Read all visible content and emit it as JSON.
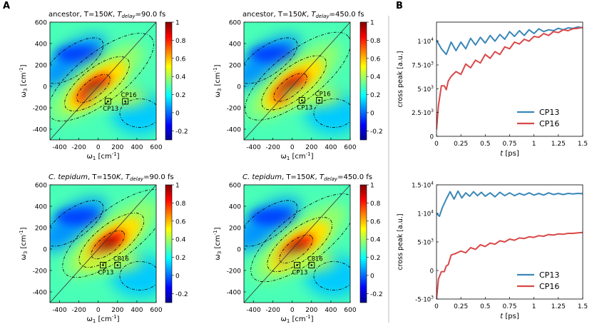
{
  "figure": {
    "label_a": "A",
    "label_b": "B",
    "cp13_label": "CP13",
    "cp16_label": "CP16"
  },
  "chart_data": [
    {
      "type": "heatmap",
      "title_species": "ancestor",
      "title_rest": ", T=150",
      "title_k": "K",
      "title_sep": ", ",
      "title_tsym": "T",
      "title_tsub": "delay",
      "title_val": "=90.0 fs",
      "xlabel_sym": "ω",
      "xlabel_sub": "1",
      "xlabel_unit": " [cm",
      "xlabel_exp": "-1",
      "xlabel_close": "]",
      "ylabel_sym": "ω",
      "ylabel_sub": "3",
      "ylabel_unit": " [cm",
      "ylabel_exp": "-1",
      "ylabel_close": "]",
      "xlim": [
        -500,
        600
      ],
      "ylim": [
        -500,
        600
      ],
      "xticks": [
        "-400",
        "-200",
        "0",
        "200",
        "400",
        "600"
      ],
      "yticks": [
        "600",
        "400",
        "200",
        "0",
        "-200",
        "-400"
      ],
      "colorbar_ticks": [
        "1",
        "0.8",
        "0.6",
        "0.4",
        "0.2",
        "0",
        "-0.2"
      ],
      "colorbar_range": [
        -0.3,
        1
      ],
      "peak": [
        -50,
        -20
      ],
      "cp13": [
        100,
        -140
      ],
      "cp16": [
        280,
        -140
      ]
    },
    {
      "type": "heatmap",
      "title_species": "ancestor",
      "title_rest": ", T=150",
      "title_k": "K",
      "title_sep": ", ",
      "title_tsym": "T",
      "title_tsub": "delay",
      "title_val": "=450.0 fs",
      "xlabel_sym": "ω",
      "xlabel_sub": "1",
      "xlabel_unit": " [cm",
      "xlabel_exp": "-1",
      "xlabel_close": "]",
      "ylabel_sym": "ω",
      "ylabel_sub": "3",
      "ylabel_unit": " [cm",
      "ylabel_exp": "-1",
      "ylabel_close": "]",
      "xlim": [
        -500,
        600
      ],
      "ylim": [
        -500,
        600
      ],
      "xticks": [
        "-400",
        "-200",
        "0",
        "200",
        "400",
        "600"
      ],
      "yticks": [
        "600",
        "400",
        "200",
        "0",
        "-200",
        "-400"
      ],
      "colorbar_ticks": [
        "1",
        "0.8",
        "0.6",
        "0.4",
        "0.2",
        "0",
        "-0.2"
      ],
      "colorbar_range": [
        -0.3,
        1
      ],
      "peak": [
        -20,
        -10
      ],
      "cp13": [
        100,
        -130
      ],
      "cp16": [
        280,
        -130
      ]
    },
    {
      "type": "heatmap",
      "title_species": "C. tepidum",
      "title_rest": ", T=150",
      "title_k": "K",
      "title_sep": ", ",
      "title_tsym": "T",
      "title_tsub": "delay",
      "title_val": "=90.0 fs",
      "xlabel_sym": "ω",
      "xlabel_sub": "1",
      "xlabel_unit": " [cm",
      "xlabel_exp": "-1",
      "xlabel_close": "]",
      "ylabel_sym": "ω",
      "ylabel_sub": "3",
      "ylabel_unit": " [cm",
      "ylabel_exp": "-1",
      "ylabel_close": "]",
      "xlim": [
        -500,
        600
      ],
      "ylim": [
        -500,
        600
      ],
      "xticks": [
        "-400",
        "-200",
        "0",
        "200",
        "400",
        "600"
      ],
      "yticks": [
        "600",
        "400",
        "200",
        "0",
        "-200",
        "-400"
      ],
      "colorbar_ticks": [
        "1",
        "0.8",
        "0.6",
        "0.4",
        "0.2",
        "0",
        "-0.2"
      ],
      "colorbar_range": [
        -0.3,
        1
      ],
      "peak": [
        100,
        40
      ],
      "cp13": [
        50,
        -150
      ],
      "cp16": [
        200,
        -150
      ]
    },
    {
      "type": "heatmap",
      "title_species": "C. tepidum",
      "title_rest": ", T=150",
      "title_k": "K",
      "title_sep": ", ",
      "title_tsym": "T",
      "title_tsub": "delay",
      "title_val": "=450.0 fs",
      "xlabel_sym": "ω",
      "xlabel_sub": "1",
      "xlabel_unit": " [cm",
      "xlabel_exp": "-1",
      "xlabel_close": "]",
      "ylabel_sym": "ω",
      "ylabel_sub": "3",
      "ylabel_unit": " [cm",
      "ylabel_exp": "-1",
      "ylabel_close": "]",
      "xlim": [
        -500,
        600
      ],
      "ylim": [
        -500,
        600
      ],
      "xticks": [
        "-400",
        "-200",
        "0",
        "200",
        "400",
        "600"
      ],
      "yticks": [
        "600",
        "400",
        "200",
        "0",
        "-200",
        "-400"
      ],
      "colorbar_ticks": [
        "1",
        "0.8",
        "0.6",
        "0.4",
        "0.2",
        "0",
        "-0.2"
      ],
      "colorbar_range": [
        -0.3,
        1
      ],
      "peak": [
        40,
        0
      ],
      "cp13": [
        50,
        -150
      ],
      "cp16": [
        200,
        -150
      ]
    },
    {
      "type": "line",
      "xlabel_sym": "t",
      "xlabel_unit": " [ps]",
      "ylabel": "cross peak [a.u.]",
      "xlim": [
        0,
        1.5
      ],
      "ylim": [
        0,
        12000
      ],
      "xticks": [
        "0",
        "0.25",
        "0.5",
        "0.75",
        "1",
        "1.25",
        "1.5"
      ],
      "yticks": [
        {
          "value": 10000,
          "base": "1·10",
          "exp": "4"
        },
        {
          "value": 7500,
          "base": "7.5·10",
          "exp": "3"
        },
        {
          "value": 5000,
          "base": "5·10",
          "exp": "3"
        },
        {
          "value": 2500,
          "base": "2.5·10",
          "exp": "3"
        },
        {
          "value": 0,
          "base": "0",
          "exp": ""
        }
      ],
      "series": [
        {
          "name": "CP13",
          "color": "#3a87b8",
          "x": [
            0,
            0.05,
            0.1,
            0.15,
            0.2,
            0.25,
            0.3,
            0.35,
            0.4,
            0.45,
            0.5,
            0.55,
            0.6,
            0.65,
            0.7,
            0.75,
            0.8,
            0.85,
            0.9,
            0.95,
            1.0,
            1.05,
            1.1,
            1.15,
            1.2,
            1.25,
            1.3,
            1.35,
            1.4,
            1.45,
            1.5
          ],
          "values": [
            10100,
            9200,
            8600,
            9900,
            9000,
            9900,
            9200,
            10300,
            9600,
            10400,
            9800,
            10600,
            10000,
            10700,
            10200,
            11000,
            10500,
            11100,
            10600,
            11200,
            10800,
            11300,
            11000,
            11200,
            11100,
            11350,
            11200,
            11400,
            11350,
            11500,
            11400
          ]
        },
        {
          "name": "CP16",
          "color": "#d94848",
          "x": [
            0,
            0.02,
            0.05,
            0.08,
            0.1,
            0.12,
            0.15,
            0.2,
            0.25,
            0.3,
            0.35,
            0.4,
            0.45,
            0.5,
            0.55,
            0.6,
            0.65,
            0.7,
            0.75,
            0.8,
            0.85,
            0.9,
            0.95,
            1.0,
            1.05,
            1.1,
            1.15,
            1.2,
            1.25,
            1.3,
            1.35,
            1.4,
            1.45,
            1.5
          ],
          "values": [
            700,
            3200,
            5300,
            5300,
            4900,
            5800,
            6300,
            6800,
            6500,
            7600,
            7200,
            8000,
            7700,
            8600,
            8200,
            8900,
            8600,
            9400,
            9200,
            9900,
            9700,
            10200,
            10000,
            10500,
            10400,
            10800,
            10600,
            11000,
            10900,
            11200,
            11100,
            11300,
            11350,
            11450
          ]
        }
      ]
    },
    {
      "type": "line",
      "xlabel_sym": "t",
      "xlabel_unit": " [ps]",
      "ylabel": "cross peak [a.u.]",
      "xlim": [
        0,
        1.5
      ],
      "ylim": [
        -5000,
        15000
      ],
      "xticks": [
        "0",
        "0.25",
        "0.5",
        "0.75",
        "1",
        "1.25",
        "1.5"
      ],
      "yticks": [
        {
          "value": 15000,
          "base": "1.5·10",
          "exp": "4"
        },
        {
          "value": 10000,
          "base": "1·10",
          "exp": "4"
        },
        {
          "value": 5000,
          "base": "5·10",
          "exp": "3"
        },
        {
          "value": 0,
          "base": "0",
          "exp": ""
        },
        {
          "value": -5000,
          "base": "-5·10",
          "exp": "3"
        }
      ],
      "series": [
        {
          "name": "CP13",
          "color": "#3a87b8",
          "x": [
            0,
            0.03,
            0.06,
            0.1,
            0.14,
            0.18,
            0.22,
            0.26,
            0.3,
            0.34,
            0.38,
            0.42,
            0.46,
            0.5,
            0.55,
            0.6,
            0.65,
            0.7,
            0.75,
            0.8,
            0.85,
            0.9,
            0.95,
            1.0,
            1.05,
            1.1,
            1.15,
            1.2,
            1.25,
            1.3,
            1.35,
            1.4,
            1.45,
            1.5
          ],
          "values": [
            10000,
            9500,
            11000,
            12500,
            13800,
            12500,
            13900,
            12700,
            13600,
            13000,
            13800,
            13100,
            13700,
            13000,
            13600,
            12900,
            13700,
            13100,
            13600,
            13100,
            13500,
            13200,
            13600,
            13200,
            13500,
            13200,
            13600,
            13300,
            13500,
            13300,
            13500,
            13400,
            13500,
            13450
          ]
        },
        {
          "name": "CP16",
          "color": "#d94848",
          "x": [
            0,
            0.02,
            0.05,
            0.08,
            0.1,
            0.12,
            0.15,
            0.2,
            0.25,
            0.3,
            0.35,
            0.4,
            0.45,
            0.5,
            0.55,
            0.6,
            0.65,
            0.7,
            0.75,
            0.8,
            0.85,
            0.9,
            0.95,
            1.0,
            1.05,
            1.1,
            1.15,
            1.2,
            1.25,
            1.3,
            1.35,
            1.4,
            1.45,
            1.5
          ],
          "values": [
            -5000,
            -1500,
            -200,
            -200,
            800,
            1000,
            2700,
            3000,
            3400,
            3100,
            4000,
            3700,
            4500,
            4200,
            4800,
            4600,
            5200,
            5000,
            5500,
            5300,
            5700,
            5600,
            5900,
            5800,
            6100,
            6000,
            6300,
            6200,
            6400,
            6350,
            6500,
            6500,
            6600,
            6650
          ]
        }
      ]
    }
  ]
}
